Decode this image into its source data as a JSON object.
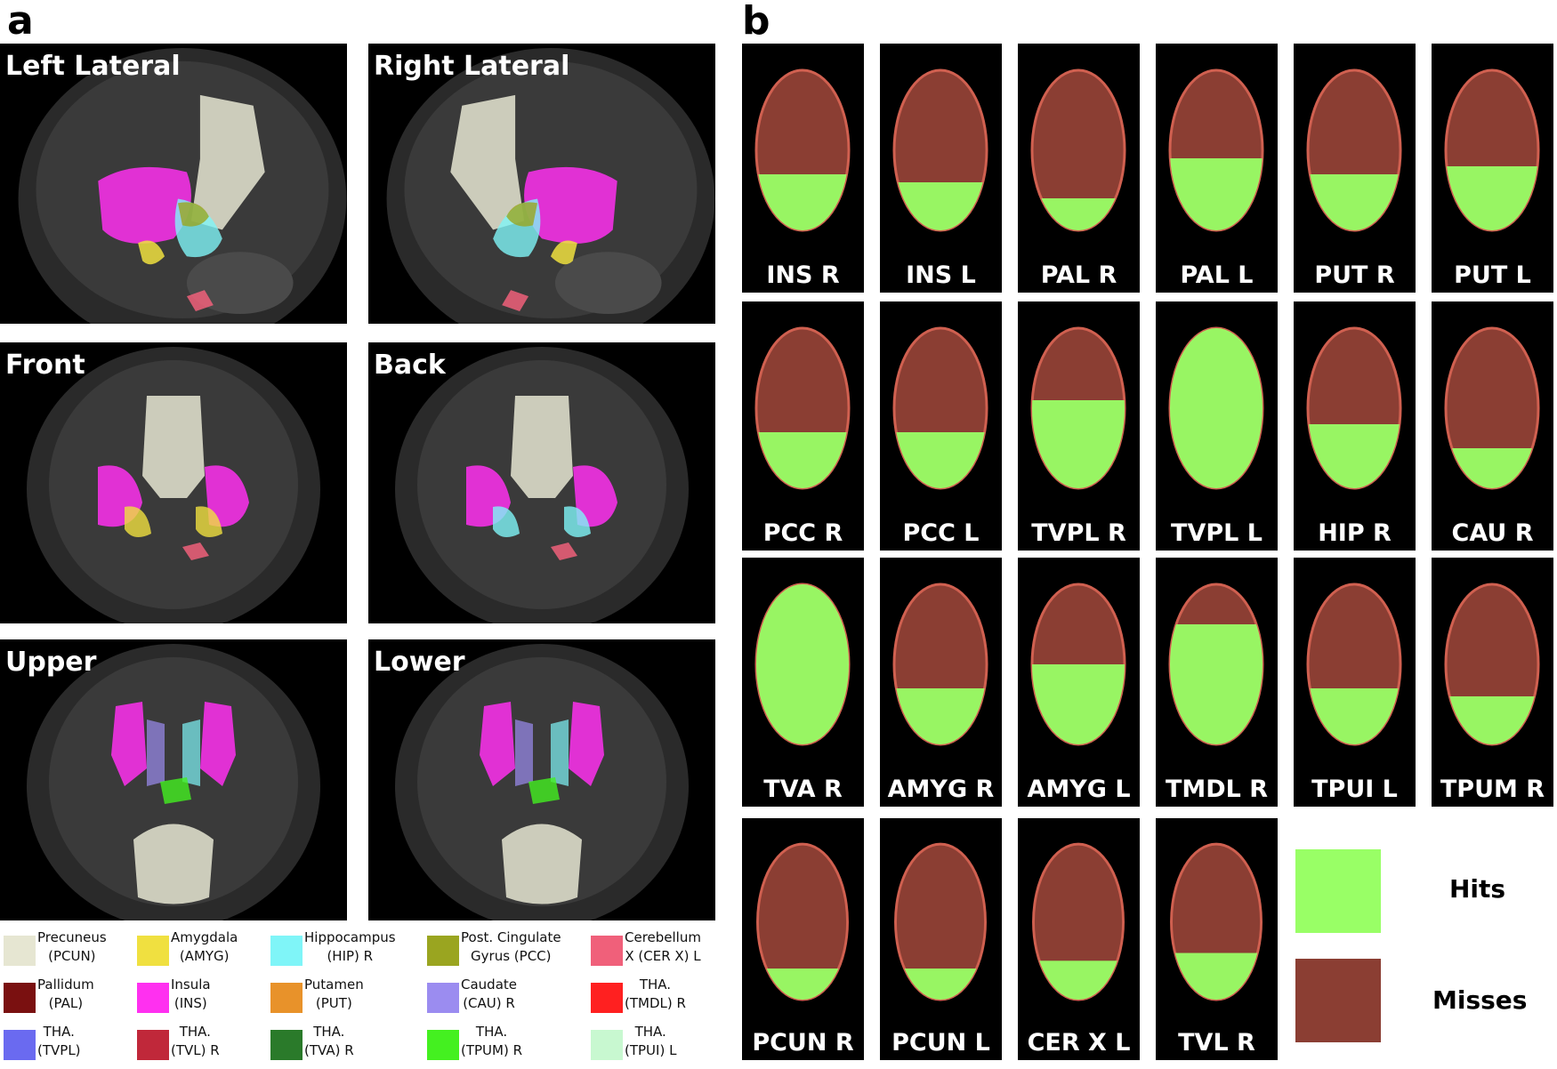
{
  "panels": {
    "a": "a",
    "b": "b"
  },
  "views": [
    {
      "id": "left-lateral",
      "label": "Left Lateral"
    },
    {
      "id": "right-lateral",
      "label": "Right Lateral"
    },
    {
      "id": "front",
      "label": "Front"
    },
    {
      "id": "back",
      "label": "Back"
    },
    {
      "id": "upper",
      "label": "Upper"
    },
    {
      "id": "lower",
      "label": "Lower"
    }
  ],
  "legend": [
    {
      "line1": "Precuneus",
      "line2": "(PCUN)",
      "color": "#e6e6d2"
    },
    {
      "line1": "Amygdala",
      "line2": "(AMYG)",
      "color": "#f0e040"
    },
    {
      "line1": "Hippocampus",
      "line2": "(HIP) R",
      "color": "#7ff5f8"
    },
    {
      "line1": "Post. Cingulate",
      "line2": "Gyrus (PCC)",
      "color": "#9aa520"
    },
    {
      "line1": "Cerebellum",
      "line2": "X (CER X) L",
      "color": "#f0607a"
    },
    {
      "line1": "Pallidum",
      "line2": "(PAL)",
      "color": "#7a1010"
    },
    {
      "line1": "Insula",
      "line2": "(INS)",
      "color": "#ff30f0"
    },
    {
      "line1": "Putamen",
      "line2": "(PUT)",
      "color": "#e8922a"
    },
    {
      "line1": "Caudate",
      "line2": "(CAU) R",
      "color": "#9b8cf0"
    },
    {
      "line1": "THA.",
      "line2": "(TMDL) R",
      "color": "#ff2020"
    },
    {
      "line1": "THA.",
      "line2": "(TVPL)",
      "color": "#6a6af0"
    },
    {
      "line1": "THA.",
      "line2": "(TVL) R",
      "color": "#c0283a"
    },
    {
      "line1": "THA.",
      "line2": "(TVA) R",
      "color": "#2a7a2a"
    },
    {
      "line1": "THA.",
      "line2": "(TPUM) R",
      "color": "#44f020"
    },
    {
      "line1": "THA.",
      "line2": "(TPUI) L",
      "color": "#c8f8d0"
    }
  ],
  "tiles": [
    {
      "label": "INS R",
      "hit": 0.35
    },
    {
      "label": "INS L",
      "hit": 0.3
    },
    {
      "label": "PAL R",
      "hit": 0.2
    },
    {
      "label": "PAL L",
      "hit": 0.45
    },
    {
      "label": "PUT R",
      "hit": 0.35
    },
    {
      "label": "PUT L",
      "hit": 0.4
    },
    {
      "label": "PCC R",
      "hit": 0.35
    },
    {
      "label": "PCC L",
      "hit": 0.35
    },
    {
      "label": "TVPL R",
      "hit": 0.55
    },
    {
      "label": "TVPL L",
      "hit": 1.0
    },
    {
      "label": "HIP R",
      "hit": 0.4
    },
    {
      "label": "CAU R",
      "hit": 0.25
    },
    {
      "label": "TVA R",
      "hit": 1.0
    },
    {
      "label": "AMYG R",
      "hit": 0.35
    },
    {
      "label": "AMYG L",
      "hit": 0.5
    },
    {
      "label": "TMDL R",
      "hit": 0.75
    },
    {
      "label": "TPUI L",
      "hit": 0.35
    },
    {
      "label": "TPUM R",
      "hit": 0.3
    },
    {
      "label": "PCUN R",
      "hit": 0.2
    },
    {
      "label": "PCUN L",
      "hit": 0.2
    },
    {
      "label": "CER X L",
      "hit": 0.25
    },
    {
      "label": "TVL R",
      "hit": 0.3
    }
  ],
  "key": {
    "hits": {
      "label": "Hits",
      "color": "#99ff66"
    },
    "misses": {
      "label": "Misses",
      "color": "#8b3e33"
    }
  }
}
